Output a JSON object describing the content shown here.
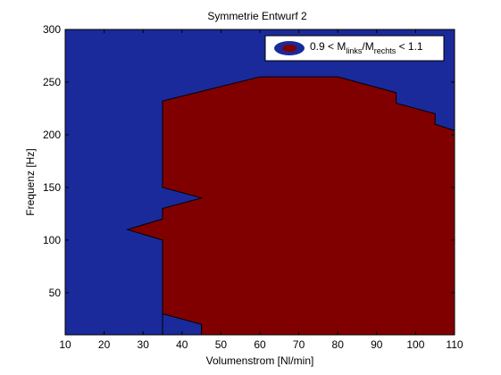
{
  "chart_data": {
    "type": "area",
    "title": "Symmetrie Entwurf 2",
    "xlabel": "Volumenstrom [Nl/min]",
    "ylabel": "Frequenz [Hz]",
    "xlim": [
      10,
      110
    ],
    "ylim": [
      10,
      300
    ],
    "xticks": [
      10,
      20,
      30,
      40,
      50,
      60,
      70,
      80,
      90,
      100,
      110
    ],
    "yticks": [
      50,
      100,
      150,
      200,
      250,
      300
    ],
    "grid": false,
    "legend_position": "top-right",
    "colors": {
      "background_region": "#1a2a9a",
      "filled_region": "#800000",
      "axes_edge": "#000000",
      "figure_background": "#ffffff"
    },
    "legend": {
      "prefix": "0.9 < M",
      "sub1": "links",
      "mid": "/M",
      "sub2": "rechts",
      "suffix": " < 1.1"
    },
    "series": [
      {
        "values_note_free": true,
        "region": [
          [
            35,
            10
          ],
          [
            35,
            30
          ],
          [
            45,
            20
          ],
          [
            45,
            10
          ],
          [
            110,
            10
          ],
          [
            110,
            204
          ],
          [
            105,
            210
          ],
          [
            105,
            220
          ],
          [
            95,
            230
          ],
          [
            95,
            240
          ],
          [
            85,
            250
          ],
          [
            80,
            255
          ],
          [
            60,
            255
          ],
          [
            35,
            232
          ],
          [
            35,
            150
          ],
          [
            45,
            140
          ],
          [
            35,
            130
          ],
          [
            35,
            120
          ],
          [
            26,
            110
          ],
          [
            35,
            100
          ]
        ]
      }
    ]
  }
}
